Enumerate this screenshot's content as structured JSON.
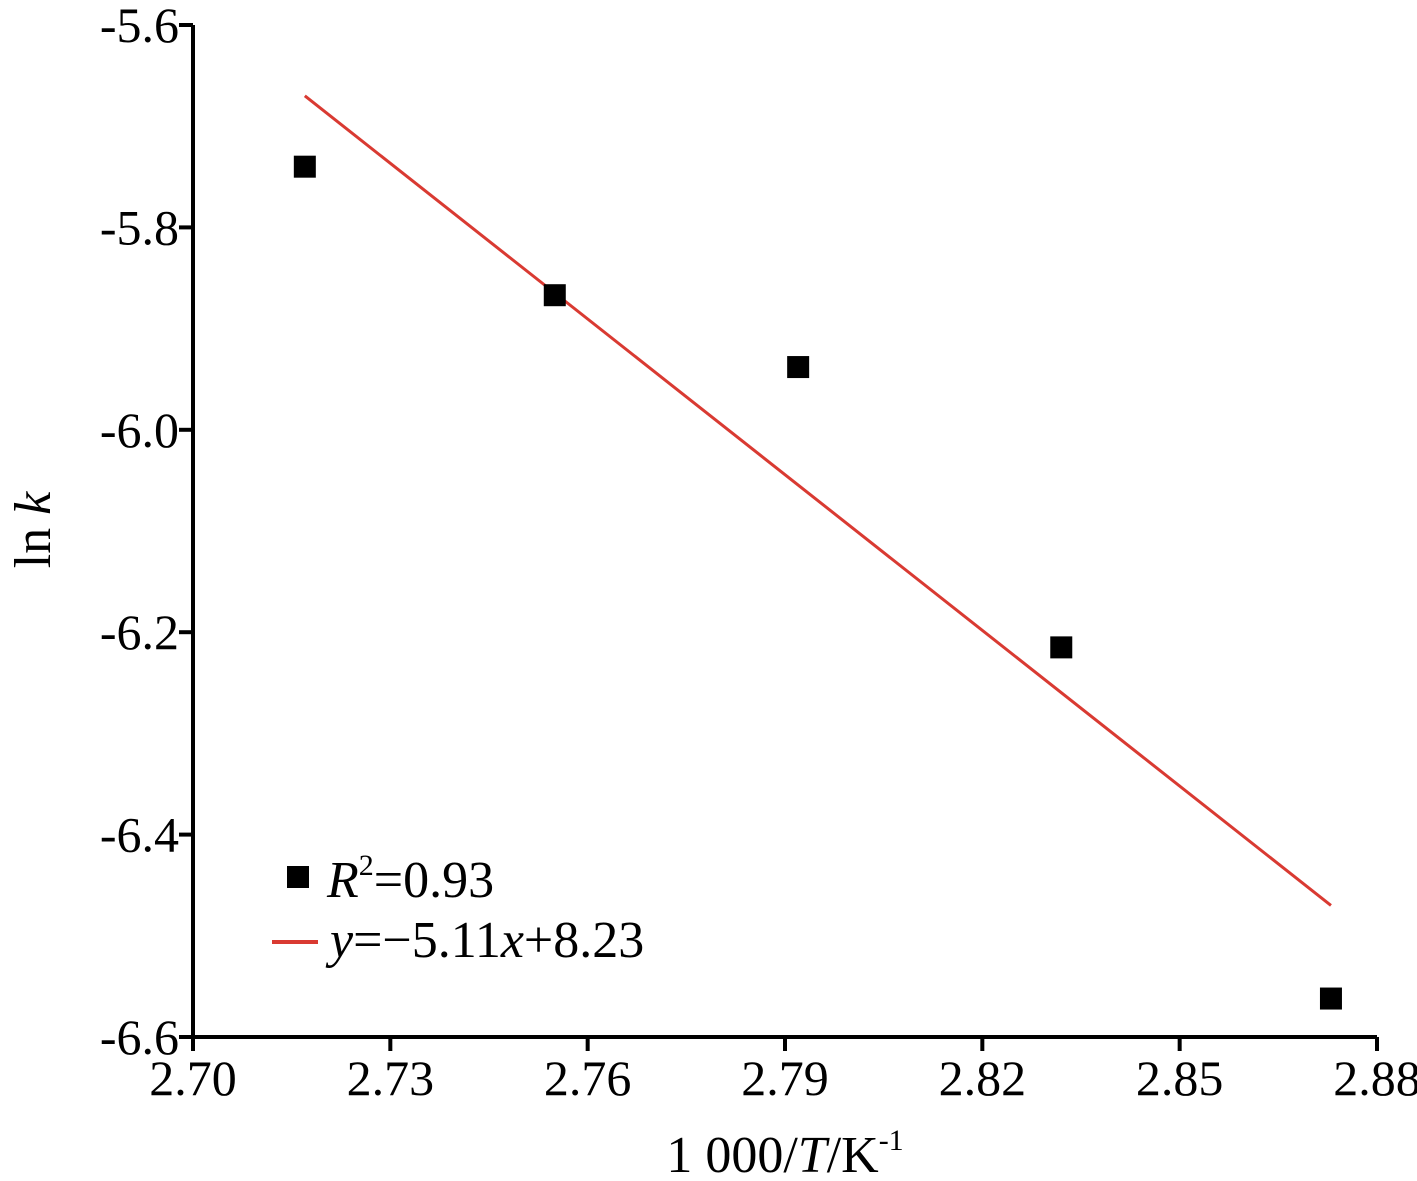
{
  "chart_data": {
    "type": "scatter",
    "xlabel": {
      "prefix": "1 000/",
      "var": "T",
      "unit": "/K",
      "sup": "-1"
    },
    "ylabel": {
      "fn": "ln ",
      "var": "k"
    },
    "xlim": [
      2.7,
      2.88
    ],
    "ylim": [
      -6.6,
      -5.6
    ],
    "xticks": [
      "2.70",
      "2.73",
      "2.76",
      "2.79",
      "2.82",
      "2.85",
      "2.88"
    ],
    "yticks": [
      "-5.6",
      "-5.8",
      "-6.0",
      "-6.2",
      "-6.4",
      "-6.6"
    ],
    "grid": false,
    "legend_position": "bottom-left",
    "series": [
      {
        "kind": "points",
        "marker": "square",
        "color": "#000000",
        "x": [
          2.717,
          2.755,
          2.792,
          2.832,
          2.873
        ],
        "y": [
          -5.74,
          -5.867,
          -5.938,
          -6.215,
          -6.562
        ]
      },
      {
        "kind": "fit-line",
        "color": "#d93a32",
        "x": [
          2.717,
          2.873
        ],
        "y": [
          -5.67,
          -6.47
        ]
      }
    ],
    "legend": {
      "points_label": {
        "var": "R",
        "sup": "2",
        "rest": "=0.93"
      },
      "line_label": {
        "var1": "y",
        "mid": "=−5.11",
        "var2": "x",
        "rest": "+8.23"
      }
    }
  }
}
